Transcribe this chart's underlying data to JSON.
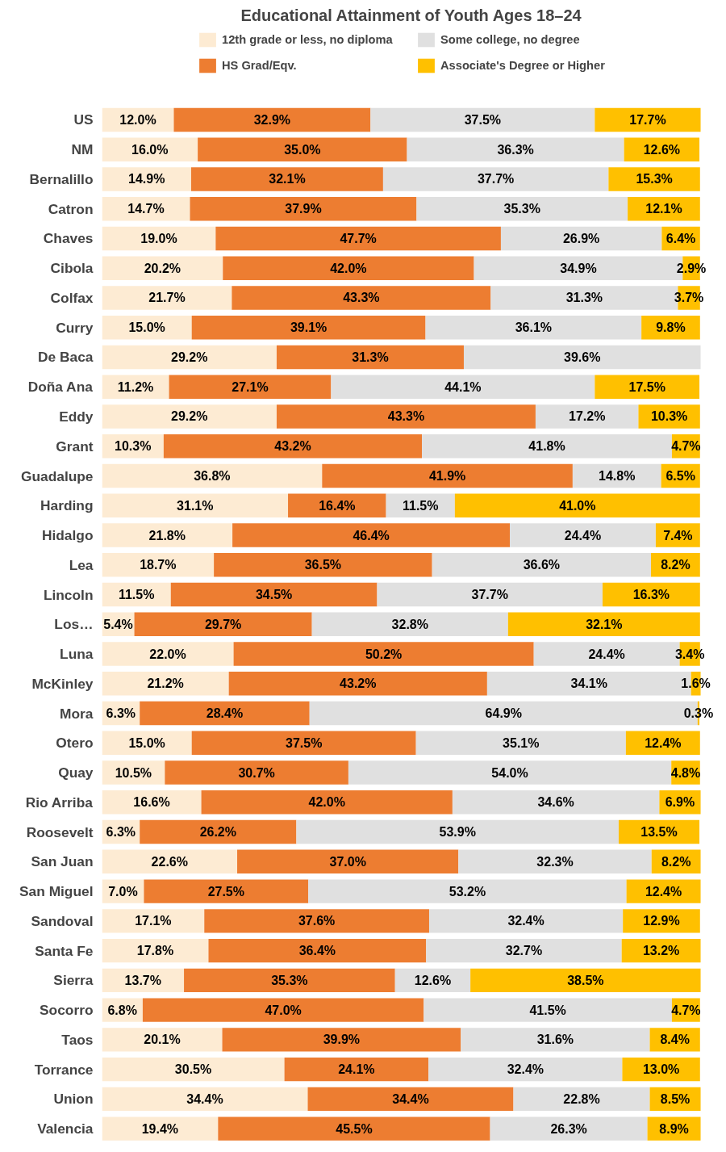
{
  "chart_data": {
    "type": "bar",
    "orientation": "horizontal",
    "stacked": true,
    "title": "Educational Attainment of Youth Ages 18–24",
    "legend": "top",
    "grid": false,
    "tick_labels": "y",
    "data_labels": true,
    "categories": [
      "US",
      "NM",
      "Bernalillo",
      "Catron",
      "Chaves",
      "Cibola",
      "Colfax",
      "Curry",
      "De Baca",
      "Doña Ana",
      "Eddy",
      "Grant",
      "Guadalupe",
      "Harding",
      "Hidalgo",
      "Lea",
      "Lincoln",
      "Los…",
      "Luna",
      "McKinley",
      "Mora",
      "Otero",
      "Quay",
      "Rio Arriba",
      "Roosevelt",
      "San Juan",
      "San Miguel",
      "Sandoval",
      "Santa Fe",
      "Sierra",
      "Socorro",
      "Taos",
      "Torrance",
      "Union",
      "Valencia"
    ],
    "series": [
      {
        "name": "12th grade or less, no diploma",
        "color": "#fdebd3",
        "values": [
          12.0,
          16.0,
          14.9,
          14.7,
          19.0,
          20.2,
          21.7,
          15.0,
          29.2,
          11.2,
          29.2,
          10.3,
          36.8,
          31.1,
          21.8,
          18.7,
          11.5,
          5.4,
          22.0,
          21.2,
          6.3,
          15.0,
          10.5,
          16.6,
          6.3,
          22.6,
          7.0,
          17.1,
          17.8,
          13.7,
          6.8,
          20.1,
          30.5,
          34.4,
          19.4
        ],
        "value_labels": [
          "12.0%",
          "16.0%",
          "14.9%",
          "14.7%",
          "19.0%",
          "20.2%",
          "21.7%",
          "15.0%",
          "29.2%",
          "11.2%",
          "29.2%",
          "10.3%",
          "36.8%",
          "31.1%",
          "21.8%",
          "18.7%",
          "11.5%",
          "5.4%",
          "22.0%",
          "21.2%",
          "6.3%",
          "15.0%",
          "10.5%",
          "16.6%",
          "6.3%",
          "22.6%",
          "7.0%",
          "17.1%",
          "17.8%",
          "13.7%",
          "6.8%",
          "20.1%",
          "30.5%",
          "34.4%",
          "19.4%"
        ]
      },
      {
        "name": "HS Grad/Eqv.",
        "color": "#ed7d31",
        "values": [
          32.9,
          35.0,
          32.1,
          37.9,
          47.7,
          42.0,
          43.3,
          39.1,
          31.3,
          27.1,
          43.3,
          43.2,
          41.9,
          16.4,
          46.4,
          36.5,
          34.5,
          29.7,
          50.2,
          43.2,
          28.4,
          37.5,
          30.7,
          42.0,
          26.2,
          37.0,
          27.5,
          37.6,
          36.4,
          35.3,
          47.0,
          39.9,
          24.1,
          34.4,
          45.5
        ],
        "value_labels": [
          "32.9%",
          "35.0%",
          "32.1%",
          "37.9%",
          "47.7%",
          "42.0%",
          "43.3%",
          "39.1%",
          "31.3%",
          "27.1%",
          "43.3%",
          "43.2%",
          "41.9%",
          "16.4%",
          "46.4%",
          "36.5%",
          "34.5%",
          "29.7%",
          "50.2%",
          "43.2%",
          "28.4%",
          "37.5%",
          "30.7%",
          "42.0%",
          "26.2%",
          "37.0%",
          "27.5%",
          "37.6%",
          "36.4%",
          "35.3%",
          "47.0%",
          "39.9%",
          "24.1%",
          "34.4%",
          "45.5%"
        ]
      },
      {
        "name": "Some college, no degree",
        "color": "#e0e0e0",
        "values": [
          37.5,
          36.3,
          37.7,
          35.3,
          26.9,
          34.9,
          31.3,
          36.1,
          39.6,
          44.1,
          17.2,
          41.8,
          14.8,
          11.5,
          24.4,
          36.6,
          37.7,
          32.8,
          24.4,
          34.1,
          64.9,
          35.1,
          54.0,
          34.6,
          53.9,
          32.3,
          53.2,
          32.4,
          32.7,
          12.6,
          41.5,
          31.6,
          32.4,
          22.8,
          26.3
        ],
        "value_labels": [
          "37.5%",
          "36.3%",
          "37.7%",
          "35.3%",
          "26.9%",
          "34.9%",
          "31.3%",
          "36.1%",
          "39.6%",
          "44.1%",
          "17.2%",
          "41.8%",
          "14.8%",
          "11.5%",
          "24.4%",
          "36.6%",
          "37.7%",
          "32.8%",
          "24.4%",
          "34.1%",
          "64.9%",
          "35.1%",
          "54.0%",
          "34.6%",
          "53.9%",
          "32.3%",
          "53.2%",
          "32.4%",
          "32.7%",
          "12.6%",
          "41.5%",
          "31.6%",
          "32.4%",
          "22.8%",
          "26.3%"
        ]
      },
      {
        "name": "Associate's Degree or Higher",
        "color": "#ffc000",
        "values": [
          17.7,
          12.6,
          15.3,
          12.1,
          6.4,
          2.9,
          3.7,
          9.8,
          null,
          17.5,
          10.3,
          4.7,
          6.5,
          41.0,
          7.4,
          8.2,
          16.3,
          32.1,
          3.4,
          1.6,
          0.3,
          12.4,
          4.8,
          6.9,
          13.5,
          8.2,
          12.4,
          12.9,
          13.2,
          38.5,
          4.7,
          8.4,
          13.0,
          8.5,
          8.9
        ],
        "value_labels": [
          "17.7%",
          "12.6%",
          "15.3%",
          "12.1%",
          "6.4%",
          "2.9%",
          "3.7%",
          "9.8%",
          null,
          "17.5%",
          "10.3%",
          "4.7%",
          "6.5%",
          "41.0%",
          "7.4%",
          "8.2%",
          "16.3%",
          "32.1%",
          "3.4%",
          "1.6%",
          "0.3%",
          "12.4%",
          "4.8%",
          "6.9%",
          "13.5%",
          "8.2%",
          "12.4%",
          "12.9%",
          "13.2%",
          "38.5%",
          "4.7%",
          "8.4%",
          "13.0%",
          "8.5%",
          "8.9%"
        ]
      }
    ]
  }
}
